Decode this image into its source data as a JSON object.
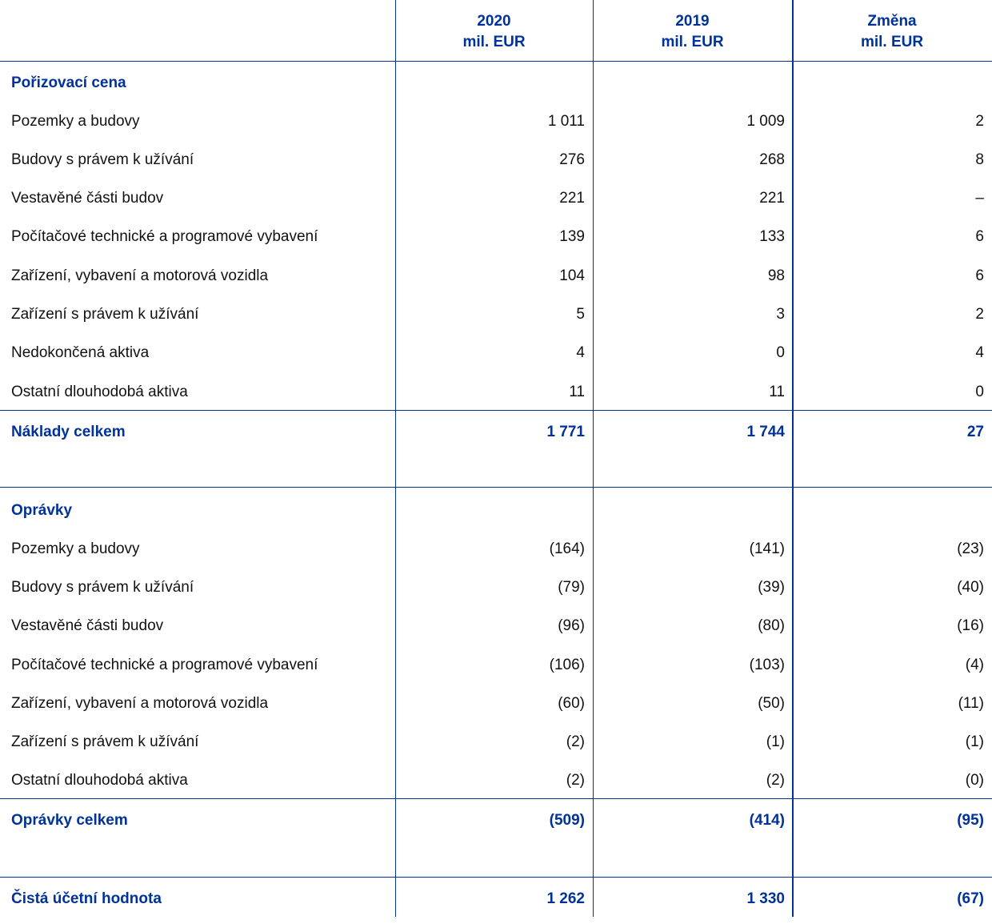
{
  "columns": [
    {
      "year": "2020",
      "unit": "mil. EUR"
    },
    {
      "year": "2019",
      "unit": "mil. EUR"
    },
    {
      "year": "Změna",
      "unit": "mil. EUR"
    }
  ],
  "cost_section": {
    "title": "Pořizovací cena",
    "rows": [
      {
        "label": "Pozemky a budovy",
        "values": [
          "1 011",
          "1 009",
          "2"
        ]
      },
      {
        "label": "Budovy s právem k užívání",
        "values": [
          "276",
          "268",
          "8"
        ]
      },
      {
        "label": "Vestavěné části budov",
        "values": [
          "221",
          "221",
          "–"
        ]
      },
      {
        "label": "Počítačové technické a programové vybavení",
        "values": [
          "139",
          "133",
          "6"
        ]
      },
      {
        "label": "Zařízení, vybavení a motorová vozidla",
        "values": [
          "104",
          "98",
          "6"
        ]
      },
      {
        "label": "Zařízení s právem k užívání",
        "values": [
          "5",
          "3",
          "2"
        ]
      },
      {
        "label": "Nedokončená aktiva",
        "values": [
          "4",
          "0",
          "4"
        ]
      },
      {
        "label": "Ostatní dlouhodobá aktiva",
        "values": [
          "11",
          "11",
          "0"
        ]
      }
    ],
    "total": {
      "label": "Náklady celkem",
      "values": [
        "1 771",
        "1 744",
        "27"
      ]
    }
  },
  "depreciation_section": {
    "title": "Oprávky",
    "rows": [
      {
        "label": "Pozemky a budovy",
        "values": [
          "(164)",
          "(141)",
          "(23)"
        ]
      },
      {
        "label": "Budovy s právem k užívání",
        "values": [
          "(79)",
          "(39)",
          "(40)"
        ]
      },
      {
        "label": "Vestavěné části budov",
        "values": [
          "(96)",
          "(80)",
          "(16)"
        ]
      },
      {
        "label": "Počítačové technické a programové vybavení",
        "values": [
          "(106)",
          "(103)",
          "(4)"
        ]
      },
      {
        "label": "Zařízení, vybavení a motorová vozidla",
        "values": [
          "(60)",
          "(50)",
          "(11)"
        ]
      },
      {
        "label": "Zařízení s právem k užívání",
        "values": [
          "(2)",
          "(1)",
          "(1)"
        ]
      },
      {
        "label": "Ostatní dlouhodobá aktiva",
        "values": [
          "(2)",
          "(2)",
          "(0)"
        ]
      }
    ],
    "total": {
      "label": "Oprávky celkem",
      "values": [
        "(509)",
        "(414)",
        "(95)"
      ]
    }
  },
  "net_book_value": {
    "label": "Čistá účetní hodnota",
    "values": [
      "1 262",
      "1 330",
      "(67)"
    ]
  },
  "colors": {
    "accent": "#003299",
    "text": "#111111"
  }
}
